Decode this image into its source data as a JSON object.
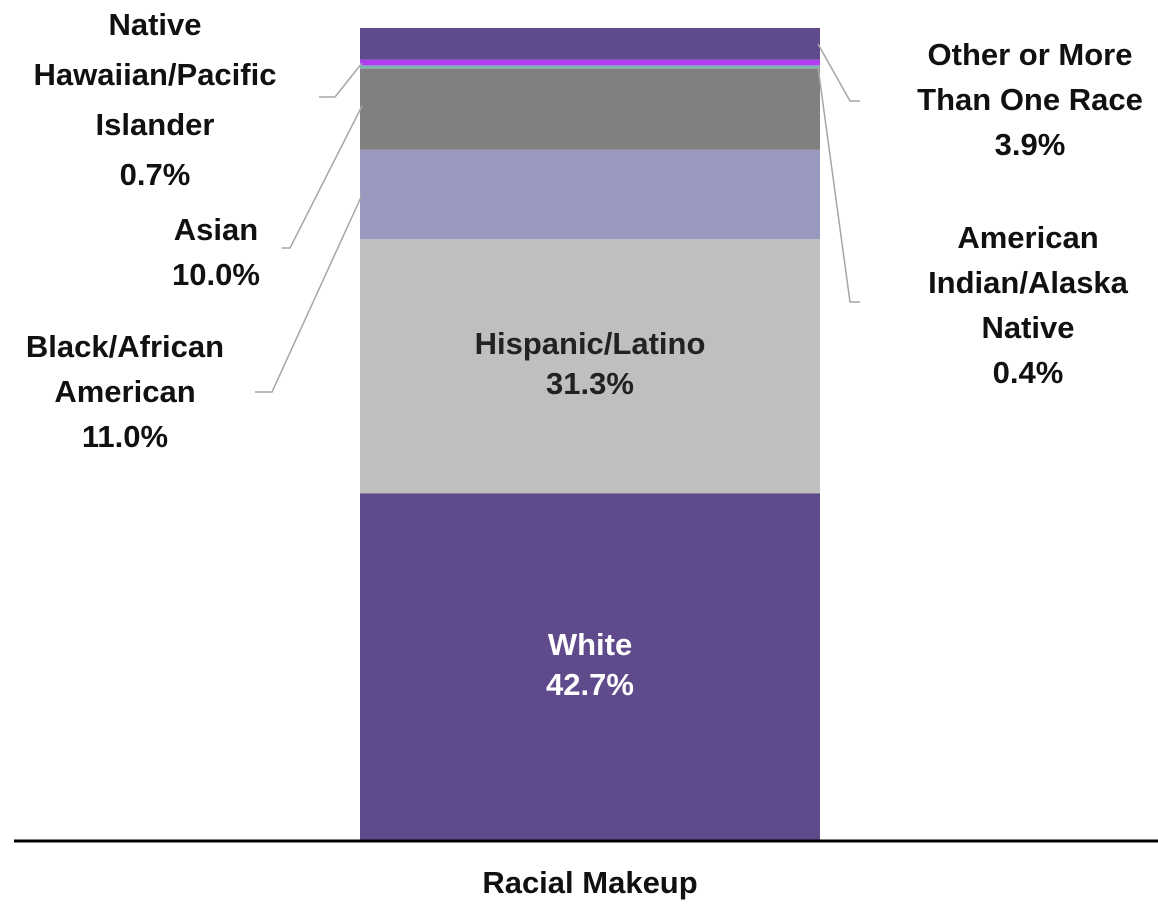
{
  "chart_data": {
    "type": "bar",
    "stacked": true,
    "categories": [
      "Racial Makeup"
    ],
    "xlabel": "Racial Makeup",
    "ylim": [
      0,
      100
    ],
    "unit": "%",
    "grid": false,
    "series": [
      {
        "name": "White",
        "value": 42.7,
        "label_lines": [
          "White",
          "42.7%"
        ],
        "color": "#5f4b8b",
        "label_color": "#ffffff",
        "label_position": "inside"
      },
      {
        "name": "Hispanic/Latino",
        "value": 31.3,
        "label_lines": [
          "Hispanic/Latino",
          "31.3%"
        ],
        "color": "#bfbfbf",
        "label_color": "#222222",
        "label_position": "inside"
      },
      {
        "name": "Black/African American",
        "value": 11.0,
        "label_lines": [
          "Black/African",
          "American",
          "11.0%"
        ],
        "color": "#9999bf",
        "label_color": "#111111",
        "label_position": "left"
      },
      {
        "name": "Asian",
        "value": 10.0,
        "label_lines": [
          "Asian",
          "10.0%"
        ],
        "color": "#808080",
        "label_color": "#111111",
        "label_position": "left"
      },
      {
        "name": "American Indian/Alaska Native",
        "value": 0.4,
        "label_lines": [
          "American",
          "Indian/Alaska",
          "Native",
          "0.4%"
        ],
        "color": "#7fb3b3",
        "label_color": "#111111",
        "label_position": "right"
      },
      {
        "name": "Native Hawaiian/Pacific Islander",
        "value": 0.7,
        "label_lines": [
          "Native",
          "Hawaiian/Pacific",
          "Islander",
          "0.7%"
        ],
        "color": "#b23cf0",
        "label_color": "#111111",
        "label_position": "left"
      },
      {
        "name": "Other or More Than One Race",
        "value": 3.9,
        "label_lines": [
          "Other or More",
          "Than One Race",
          "3.9%"
        ],
        "color": "#5f4b8b",
        "label_color": "#111111",
        "label_position": "right"
      }
    ]
  }
}
